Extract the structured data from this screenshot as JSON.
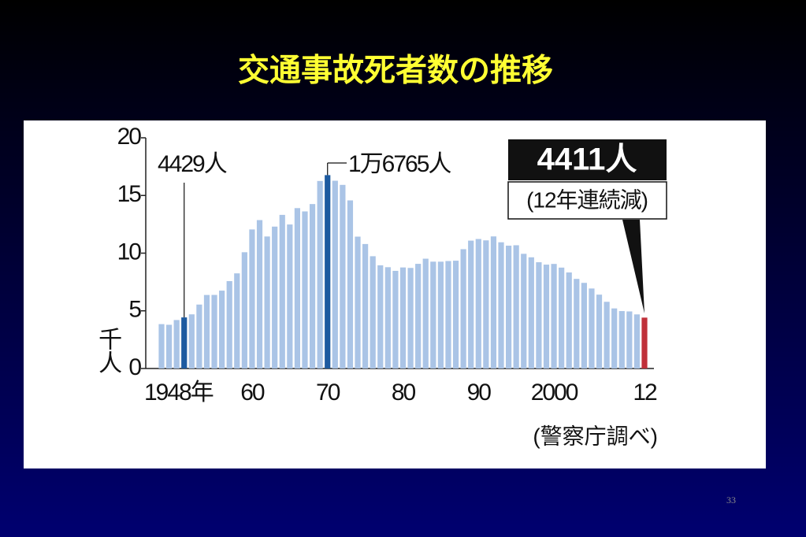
{
  "chart_data": {
    "type": "bar",
    "title": "交通事故死者数の推移",
    "ylabel": "千人",
    "source": "(警察庁調べ)",
    "page_number": "33",
    "annotations": [
      "4429人",
      "1万6765人",
      "4411人",
      "(12年連続減)"
    ],
    "categories": [
      "1948年",
      null,
      null,
      null,
      null,
      null,
      null,
      null,
      null,
      null,
      null,
      null,
      "60",
      null,
      null,
      null,
      null,
      null,
      null,
      null,
      null,
      null,
      "70",
      null,
      null,
      null,
      null,
      null,
      null,
      null,
      null,
      null,
      "80",
      null,
      null,
      null,
      null,
      null,
      null,
      null,
      null,
      null,
      "90",
      null,
      null,
      null,
      null,
      null,
      null,
      null,
      null,
      null,
      "2000",
      null,
      null,
      null,
      null,
      null,
      null,
      null,
      null,
      null,
      null,
      null,
      "12"
    ],
    "values": [
      3.848,
      3.79,
      4.202,
      4.429,
      4.696,
      5.544,
      6.374,
      6.379,
      6.751,
      7.575,
      8.248,
      10.079,
      12.055,
      12.865,
      11.445,
      12.301,
      13.318,
      12.484,
      13.904,
      13.618,
      14.256,
      16.257,
      16.765,
      16.278,
      15.918,
      14.574,
      11.432,
      10.792,
      9.734,
      8.945,
      8.783,
      8.466,
      8.76,
      8.719,
      9.073,
      9.52,
      9.262,
      9.261,
      9.317,
      9.347,
      10.344,
      11.086,
      11.227,
      11.109,
      11.452,
      10.942,
      10.649,
      10.684,
      9.942,
      9.64,
      9.211,
      9.006,
      9.066,
      8.747,
      8.326,
      7.768,
      7.425,
      6.937,
      6.403,
      5.782,
      5.209,
      4.979,
      4.948,
      4.691,
      4.411
    ],
    "color": "#aac4e6",
    "highlight_color": "#1d5aa0",
    "latest_color": "#c0303a",
    "ylim": [
      0,
      20
    ],
    "yticks": [
      0,
      5,
      10,
      15,
      20
    ]
  }
}
